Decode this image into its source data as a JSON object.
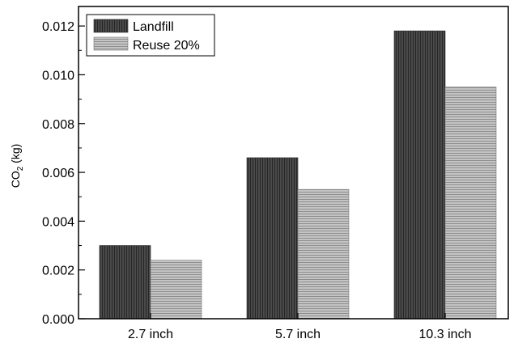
{
  "chart_data": {
    "type": "bar",
    "categories": [
      "2.7 inch",
      "5.7 inch",
      "10.3 inch"
    ],
    "series": [
      {
        "name": "Landfill",
        "values": [
          0.003,
          0.0066,
          0.0118
        ],
        "color": "#3c3c3c",
        "pattern": "vertical-lines"
      },
      {
        "name": "Reuse 20%",
        "values": [
          0.0024,
          0.0053,
          0.0095
        ],
        "color": "#b4b4b4",
        "pattern": "horizontal-lines"
      }
    ],
    "title": "",
    "xlabel": "",
    "ylabel": {
      "main": "CO",
      "sub": "2",
      "unit": "(kg)"
    },
    "ylim": [
      0,
      0.0128
    ],
    "yticks": [
      "0.000",
      "0.002",
      "0.004",
      "0.006",
      "0.008",
      "0.010",
      "0.012"
    ],
    "ytick_values": [
      0,
      0.002,
      0.004,
      0.006,
      0.008,
      0.01,
      0.012
    ],
    "legend": "top-left",
    "grid": false
  }
}
